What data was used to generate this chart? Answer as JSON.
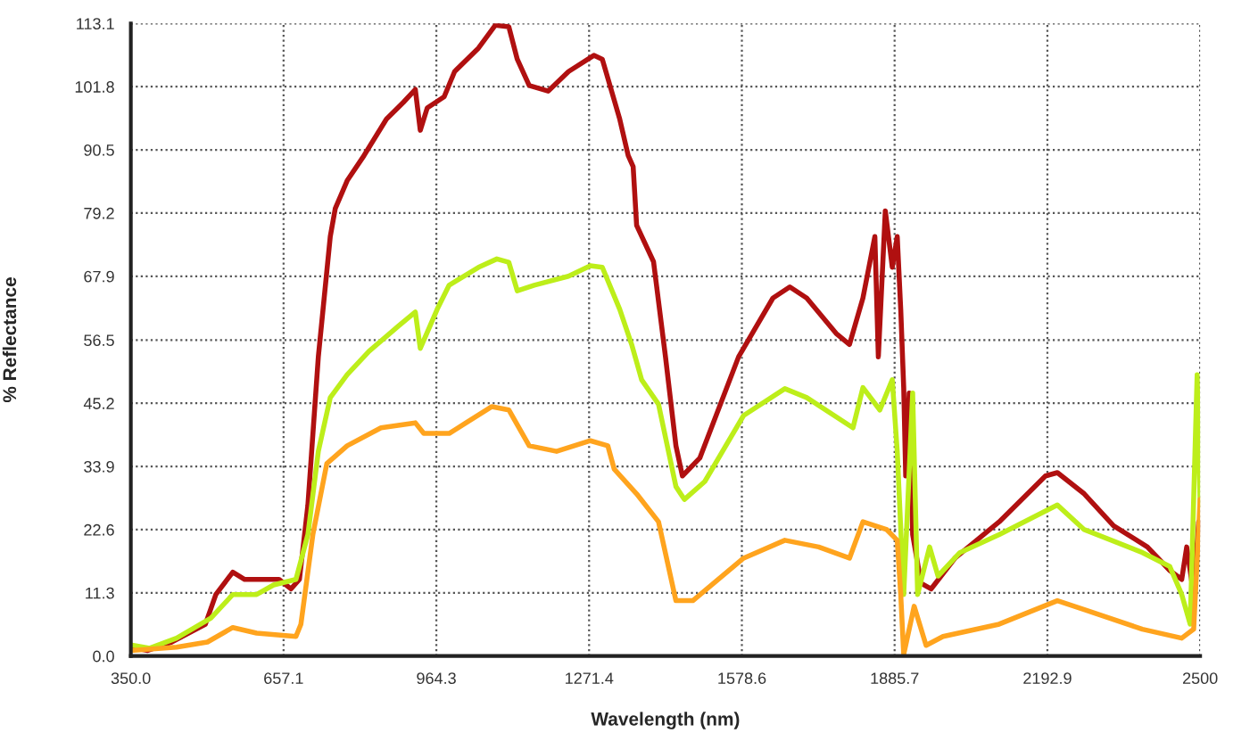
{
  "chart_data": {
    "type": "line",
    "xlabel": "Wavelength (nm)",
    "ylabel": "% Reflectance",
    "xlim": [
      350,
      2500
    ],
    "ylim": [
      0,
      113.1
    ],
    "xticks": [
      {
        "value": 350,
        "label": "350.0"
      },
      657.1,
      964.3,
      1271.4,
      1578.6,
      1885.7,
      2192.9,
      2500
    ],
    "yticks": [
      {
        "value": 0,
        "label": "0.0"
      },
      11.3,
      22.6,
      33.9,
      45.2,
      56.5,
      67.9,
      79.2,
      90.5,
      101.8,
      113.1
    ],
    "grid": true,
    "marker": "none",
    "line_style": "solid",
    "series": [
      {
        "color": "#b01010",
        "x": [
          350,
          384,
          432,
          500,
          521,
          555,
          579,
          648,
          672,
          689,
          706,
          727,
          751,
          761,
          785,
          819,
          864,
          898,
          922,
          932,
          946,
          980,
          1001,
          1049,
          1083,
          1110,
          1127,
          1151,
          1189,
          1230,
          1281,
          1298,
          1333,
          1350,
          1360,
          1367,
          1401,
          1425,
          1446,
          1459,
          1494,
          1572,
          1641,
          1675,
          1709,
          1768,
          1795,
          1822,
          1846,
          1853,
          1867,
          1881,
          1891,
          1898,
          1904,
          1908,
          1915,
          1922,
          1939,
          1959,
          2007,
          2096,
          2189,
          2213,
          2267,
          2326,
          2394,
          2439,
          2463,
          2473,
          2487,
          2497
        ],
        "values": [
          1.6,
          1.0,
          2.5,
          5.7,
          11,
          15,
          13.7,
          13.7,
          12,
          13.7,
          27,
          53.5,
          75,
          80,
          85,
          89.5,
          96,
          99,
          101.3,
          94,
          98,
          100,
          104.5,
          108.7,
          112.8,
          112.5,
          106.7,
          102,
          101,
          104.5,
          107.4,
          106.7,
          96,
          89.5,
          87.5,
          77,
          70.5,
          53.5,
          37.6,
          32.2,
          35.4,
          53.5,
          64,
          66,
          64,
          57.7,
          55.7,
          64,
          75,
          53.5,
          79.6,
          69.5,
          75,
          62,
          48,
          32.2,
          47,
          21.7,
          13,
          12,
          17.5,
          24,
          32.2,
          32.8,
          29,
          23.3,
          19.5,
          15.3,
          13.7,
          19.5,
          11,
          24
        ]
      },
      {
        "color": "#bdee1a",
        "x": [
          350,
          388,
          442,
          511,
          555,
          603,
          637,
          682,
          706,
          727,
          751,
          785,
          829,
          888,
          922,
          932,
          966,
          990,
          1049,
          1086,
          1110,
          1127,
          1161,
          1230,
          1274,
          1298,
          1333,
          1357,
          1377,
          1411,
          1446,
          1463,
          1504,
          1582,
          1665,
          1709,
          1802,
          1822,
          1856,
          1881,
          1891,
          1904,
          1922,
          1932,
          1956,
          1973,
          2017,
          2096,
          2213,
          2267,
          2384,
          2439,
          2463,
          2480,
          2494,
          2500
        ],
        "values": [
          2,
          1.4,
          3.2,
          6.8,
          11,
          11,
          12.7,
          13.7,
          21.7,
          36.6,
          46.2,
          50.3,
          54.5,
          59,
          61.5,
          55,
          62,
          66.3,
          69.5,
          71,
          70.4,
          65.3,
          66.3,
          67.9,
          69.8,
          69.5,
          62,
          55.7,
          49.4,
          45,
          30.3,
          28,
          31.2,
          43,
          47.8,
          46.2,
          40.8,
          48,
          44,
          49.4,
          36.6,
          11,
          47,
          11,
          19.5,
          14.3,
          18.5,
          21.7,
          27,
          22.6,
          18.5,
          16,
          11,
          5.7,
          50.3,
          27
        ]
      },
      {
        "color": "#ffa41e",
        "x": [
          350,
          442,
          504,
          555,
          603,
          682,
          692,
          716,
          744,
          785,
          853,
          922,
          939,
          990,
          1024,
          1076,
          1110,
          1151,
          1206,
          1274,
          1309,
          1322,
          1367,
          1411,
          1446,
          1480,
          1582,
          1665,
          1733,
          1795,
          1822,
          1870,
          1891,
          1898,
          1904,
          1925,
          1949,
          1983,
          2096,
          2213,
          2267,
          2384,
          2463,
          2487,
          2500
        ],
        "values": [
          1,
          1.6,
          2.5,
          5.1,
          4.1,
          3.5,
          5.7,
          21.7,
          34.4,
          37.6,
          40.8,
          41.7,
          39.8,
          39.8,
          41.7,
          44.6,
          44,
          37.6,
          36.6,
          38.5,
          37.6,
          33.4,
          29,
          24,
          9.9,
          9.9,
          17.5,
          20.7,
          19.5,
          17.5,
          24,
          22.6,
          20.7,
          11,
          0.3,
          8.9,
          1.9,
          3.5,
          5.7,
          9.9,
          8.3,
          4.8,
          3.2,
          4.8,
          28
        ]
      }
    ]
  }
}
